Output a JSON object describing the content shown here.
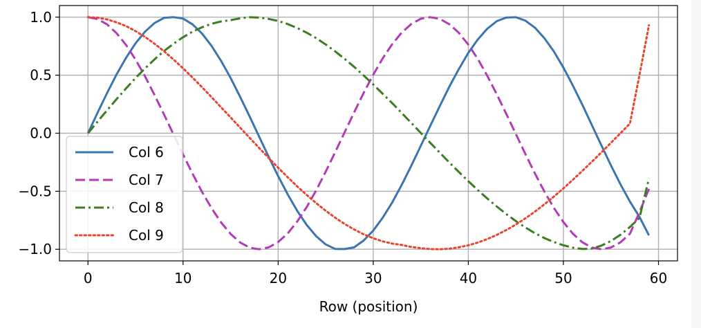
{
  "chart_data": {
    "type": "line",
    "xlabel": "Row (position)",
    "ylabel": "",
    "xlim": [
      -3,
      62
    ],
    "ylim": [
      -1.1,
      1.1
    ],
    "xticks": [
      0,
      10,
      20,
      30,
      40,
      50,
      60
    ],
    "yticks": [
      -1.0,
      -0.5,
      0.0,
      0.5,
      1.0
    ],
    "xtick_labels": [
      "0",
      "10",
      "20",
      "30",
      "40",
      "50",
      "60"
    ],
    "ytick_labels": [
      "−1.0",
      "−0.5",
      "0.0",
      "0.5",
      "1.0"
    ],
    "grid": true,
    "legend_position": "lower-left",
    "x": [
      0,
      1,
      2,
      3,
      4,
      5,
      6,
      7,
      8,
      9,
      10,
      11,
      12,
      13,
      14,
      15,
      16,
      17,
      18,
      19,
      20,
      21,
      22,
      23,
      24,
      25,
      26,
      27,
      28,
      29,
      30,
      31,
      32,
      33,
      34,
      35,
      36,
      37,
      38,
      39,
      40,
      41,
      42,
      43,
      44,
      45,
      46,
      47,
      48,
      49,
      50,
      51,
      52,
      53,
      54,
      55,
      56,
      57,
      58,
      59
    ],
    "series": [
      {
        "name": "Col 6",
        "style": "solid",
        "color": "#3b75af",
        "values": [
          0.0,
          0.175,
          0.345,
          0.505,
          0.649,
          0.774,
          0.875,
          0.949,
          0.994,
          1.0,
          0.988,
          0.937,
          0.858,
          0.752,
          0.623,
          0.476,
          0.314,
          0.144,
          -0.029,
          -0.203,
          -0.369,
          -0.526,
          -0.668,
          -0.79,
          -0.888,
          -0.958,
          -0.997,
          -0.998,
          -0.983,
          -0.924,
          -0.839,
          -0.728,
          -0.596,
          -0.445,
          -0.281,
          -0.11,
          0.064,
          0.235,
          0.4,
          0.552,
          0.692,
          0.808,
          0.901,
          0.966,
          0.996,
          0.999,
          0.97,
          0.91,
          0.819,
          0.704,
          0.565,
          0.41,
          0.243,
          0.069,
          -0.106,
          -0.277,
          -0.44,
          -0.589,
          -0.721,
          -0.88
        ]
      },
      {
        "name": "Col 7",
        "style": "dashed",
        "color": "#b23cb5",
        "values": [
          1.0,
          0.984,
          0.938,
          0.863,
          0.761,
          0.635,
          0.49,
          0.33,
          0.161,
          -0.011,
          -0.183,
          -0.35,
          -0.506,
          -0.647,
          -0.769,
          -0.868,
          -0.941,
          -0.986,
          -1.0,
          -0.984,
          -0.938,
          -0.864,
          -0.762,
          -0.637,
          -0.492,
          -0.332,
          -0.163,
          0.009,
          0.181,
          0.348,
          0.504,
          0.645,
          0.768,
          0.867,
          0.94,
          0.986,
          1.0,
          0.985,
          0.939,
          0.865,
          0.764,
          0.639,
          0.494,
          0.334,
          0.166,
          -0.007,
          -0.179,
          -0.346,
          -0.502,
          -0.644,
          -0.766,
          -0.866,
          -0.94,
          -0.985,
          -1.0,
          -0.985,
          -0.94,
          -0.866,
          -0.68,
          -0.48
        ]
      },
      {
        "name": "Col 8",
        "style": "dashdot",
        "color": "#3a7d23",
        "values": [
          0.0,
          0.099,
          0.197,
          0.293,
          0.386,
          0.475,
          0.558,
          0.636,
          0.708,
          0.771,
          0.827,
          0.875,
          0.913,
          0.943,
          0.963,
          0.974,
          0.99,
          0.999,
          0.996,
          0.985,
          0.967,
          0.941,
          0.907,
          0.866,
          0.819,
          0.765,
          0.705,
          0.64,
          0.571,
          0.497,
          0.42,
          0.34,
          0.258,
          0.174,
          0.089,
          0.003,
          -0.083,
          -0.168,
          -0.252,
          -0.334,
          -0.414,
          -0.49,
          -0.563,
          -0.632,
          -0.697,
          -0.757,
          -0.812,
          -0.861,
          -0.903,
          -0.938,
          -0.966,
          -0.986,
          -0.998,
          -0.993,
          -0.968,
          -0.929,
          -0.875,
          -0.808,
          -0.73,
          -0.39
        ]
      },
      {
        "name": "Col 9",
        "style": "dotted",
        "color": "#e8442e",
        "values": [
          1.0,
          0.995,
          0.981,
          0.956,
          0.923,
          0.88,
          0.83,
          0.771,
          0.706,
          0.635,
          0.559,
          0.479,
          0.396,
          0.31,
          0.223,
          0.136,
          0.048,
          -0.04,
          -0.127,
          -0.213,
          -0.297,
          -0.379,
          -0.457,
          -0.532,
          -0.603,
          -0.668,
          -0.728,
          -0.782,
          -0.83,
          -0.871,
          -0.905,
          -0.932,
          -0.951,
          -0.963,
          -0.98,
          -0.99,
          -0.998,
          -1.0,
          -0.995,
          -0.983,
          -0.966,
          -0.942,
          -0.912,
          -0.876,
          -0.834,
          -0.787,
          -0.734,
          -0.676,
          -0.613,
          -0.546,
          -0.475,
          -0.401,
          -0.324,
          -0.245,
          -0.165,
          -0.083,
          0.0,
          0.083,
          0.5,
          0.93
        ]
      }
    ]
  }
}
